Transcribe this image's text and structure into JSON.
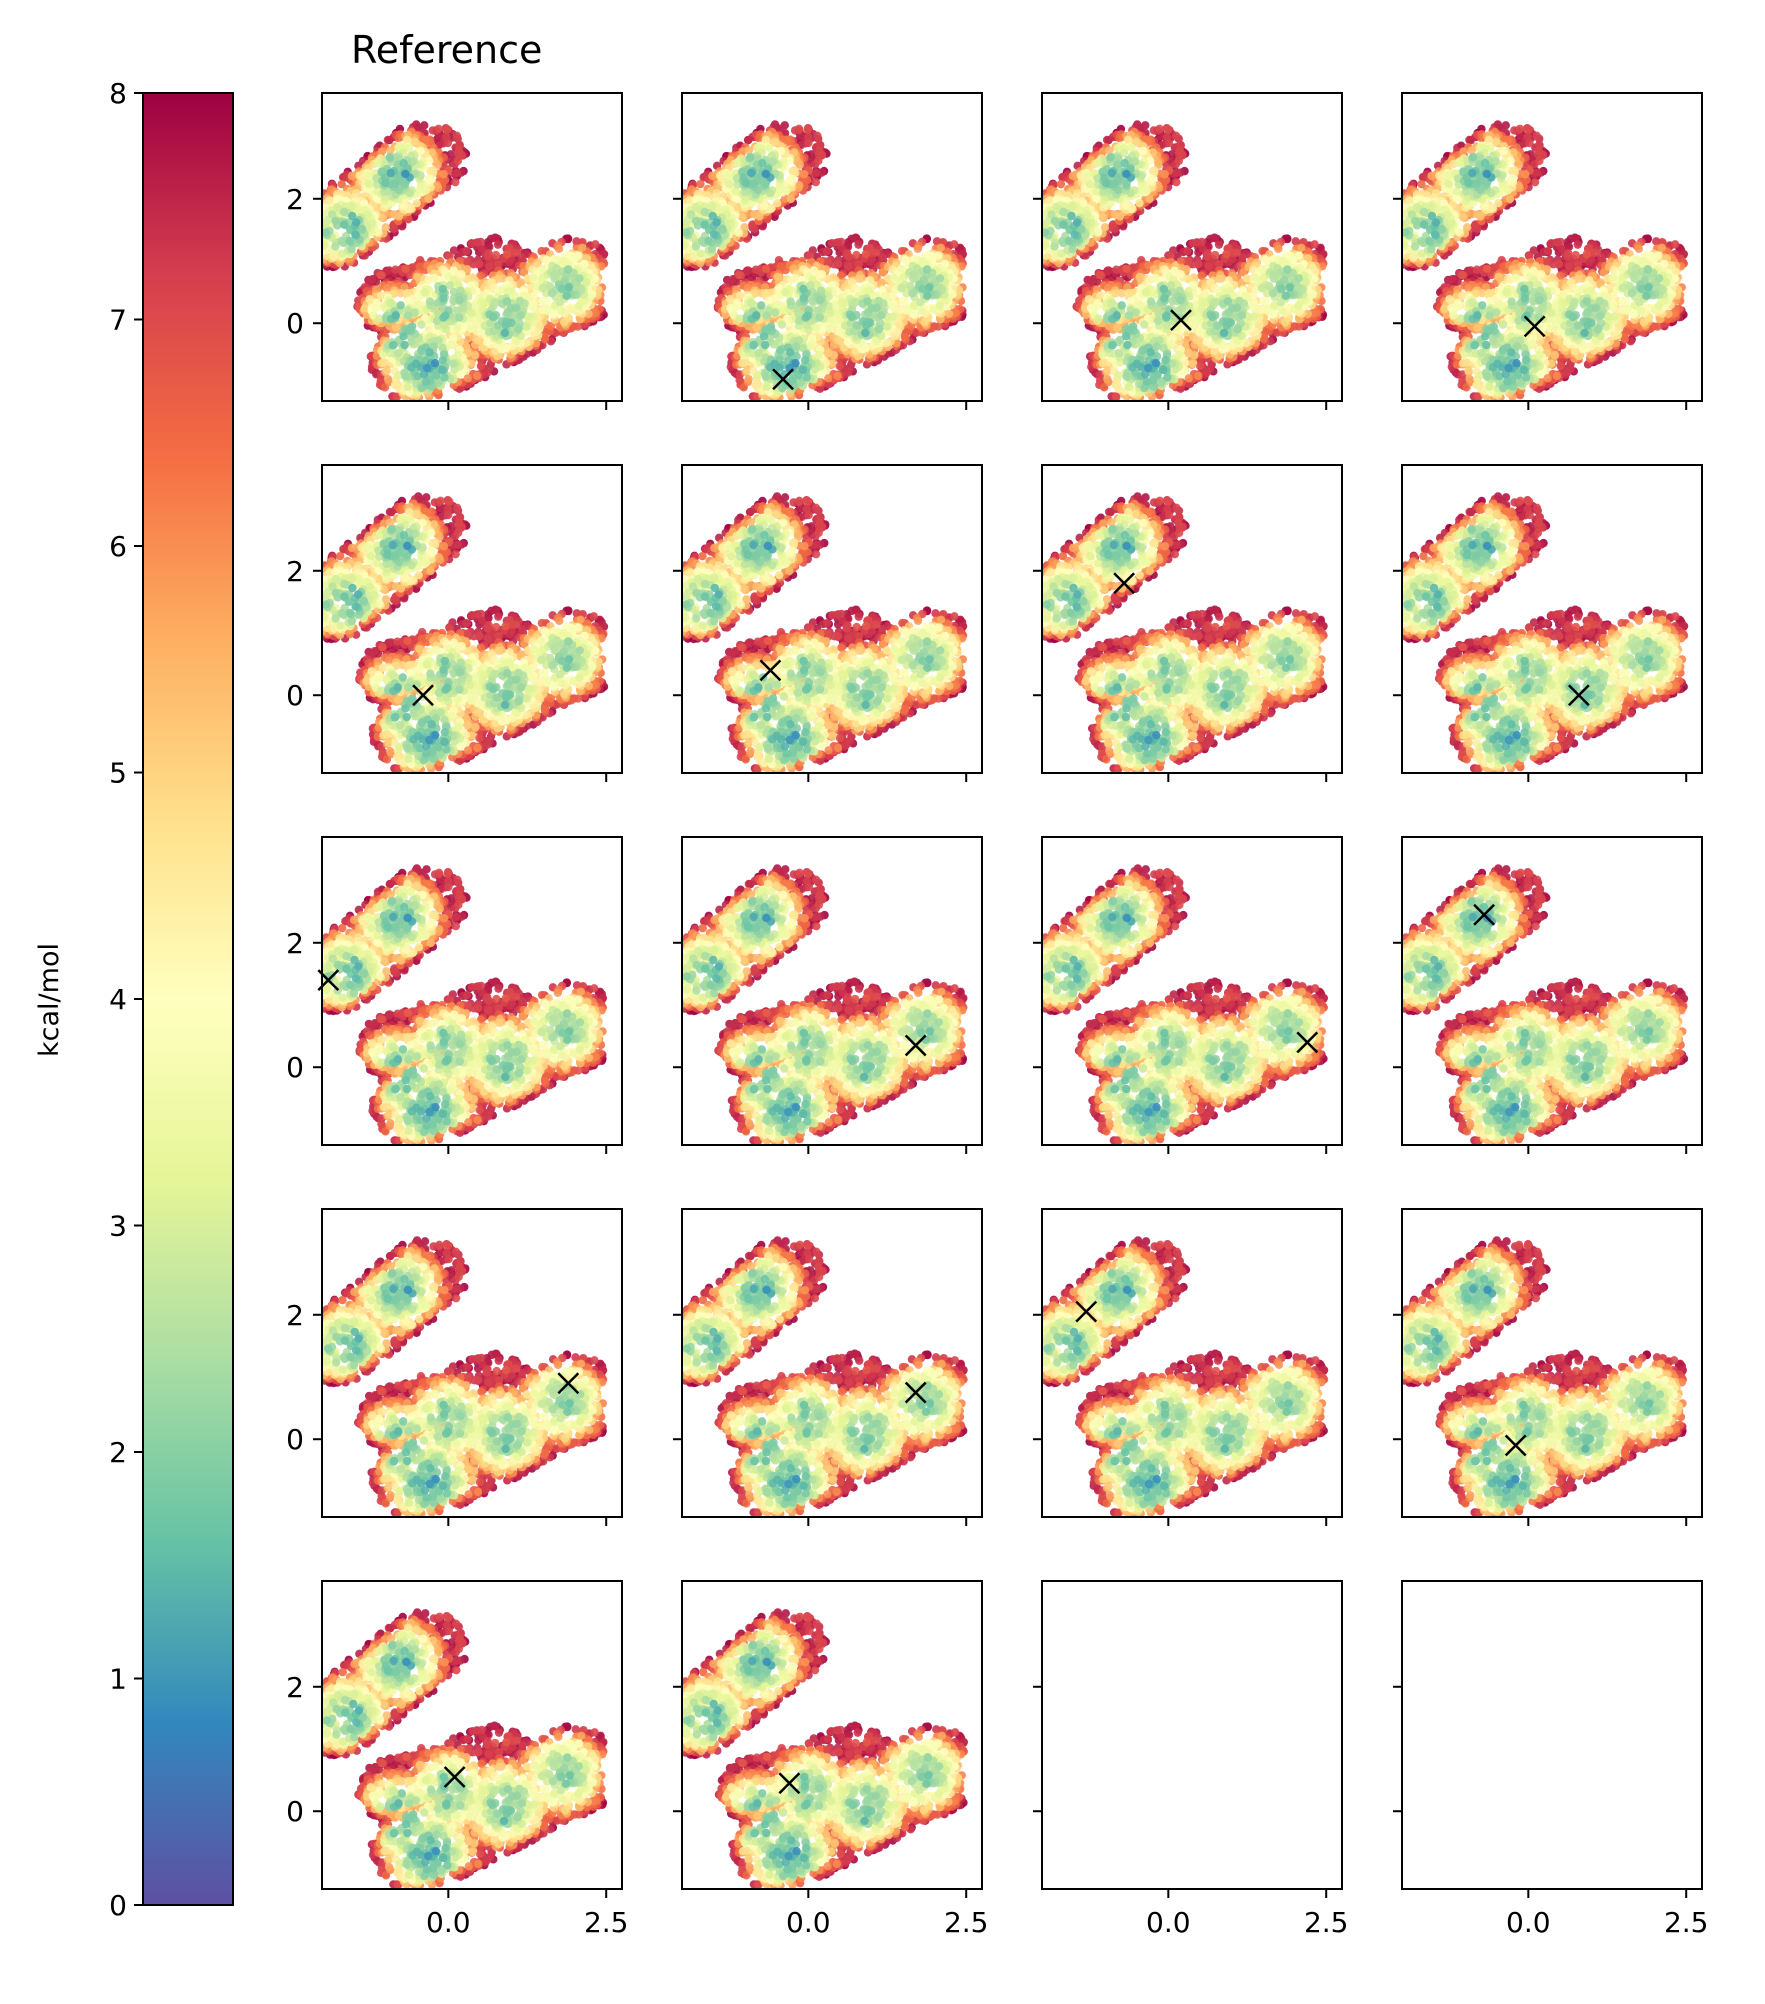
{
  "colorbar": {
    "label": "kcal/mol",
    "colormap": "Spectral_r",
    "range": [
      0,
      8
    ],
    "ticks": [
      "0",
      "1",
      "2",
      "3",
      "4",
      "5",
      "6",
      "7",
      "8"
    ],
    "stops": [
      "#5e4fa2",
      "#3288bd",
      "#66c2a5",
      "#abdda4",
      "#e6f598",
      "#ffffbf",
      "#fee08b",
      "#fdae61",
      "#f46d43",
      "#d53e4f",
      "#9e0142"
    ]
  },
  "chart_data": {
    "type": "scatter",
    "title": "Reference",
    "grid_layout": {
      "rows": 5,
      "cols": 4
    },
    "axes": {
      "xlim": [
        -2.0,
        2.75
      ],
      "ylim": [
        -1.25,
        3.7
      ],
      "xticks": [
        "0.0",
        "2.5"
      ],
      "xtick_values": [
        0.0,
        2.5
      ],
      "yticks": [
        "0",
        "2"
      ],
      "ytick_values": [
        0,
        2
      ],
      "grid": false,
      "shared_x": true,
      "shared_y": true
    },
    "energy_basins": [
      {
        "x": -0.3,
        "y": -0.7,
        "energy": 1.5
      },
      {
        "x": -0.8,
        "y": -0.1,
        "energy": 1.8
      },
      {
        "x": 0.0,
        "y": 0.3,
        "energy": 2.2
      },
      {
        "x": 0.9,
        "y": 0.1,
        "energy": 2.0
      },
      {
        "x": 1.8,
        "y": 0.6,
        "energy": 2.2
      },
      {
        "x": -0.8,
        "y": 2.4,
        "energy": 1.8
      },
      {
        "x": -1.6,
        "y": 1.5,
        "energy": 2.0
      }
    ],
    "panels": [
      {
        "title": "Reference",
        "marker": null
      },
      {
        "marker": {
          "x": -0.4,
          "y": -0.9
        }
      },
      {
        "marker": {
          "x": 0.2,
          "y": 0.05
        }
      },
      {
        "marker": {
          "x": 0.1,
          "y": -0.05
        }
      },
      {
        "marker": {
          "x": -0.4,
          "y": 0.0
        }
      },
      {
        "marker": {
          "x": -0.6,
          "y": 0.4
        }
      },
      {
        "marker": {
          "x": -0.7,
          "y": 1.8
        }
      },
      {
        "marker": {
          "x": 0.8,
          "y": 0.0
        }
      },
      {
        "marker": {
          "x": -1.9,
          "y": 1.4
        }
      },
      {
        "marker": {
          "x": 1.7,
          "y": 0.35
        }
      },
      {
        "marker": {
          "x": 2.2,
          "y": 0.4
        }
      },
      {
        "marker": {
          "x": -0.7,
          "y": 2.45
        }
      },
      {
        "marker": {
          "x": 1.9,
          "y": 0.9
        }
      },
      {
        "marker": {
          "x": 1.7,
          "y": 0.75
        }
      },
      {
        "marker": {
          "x": -1.3,
          "y": 2.05
        }
      },
      {
        "marker": {
          "x": -0.2,
          "y": -0.1
        }
      },
      {
        "marker": {
          "x": 0.1,
          "y": 0.55
        }
      },
      {
        "marker": {
          "x": -0.3,
          "y": 0.45
        }
      },
      {
        "marker": null,
        "empty": true
      },
      {
        "marker": null,
        "empty": true
      }
    ]
  }
}
